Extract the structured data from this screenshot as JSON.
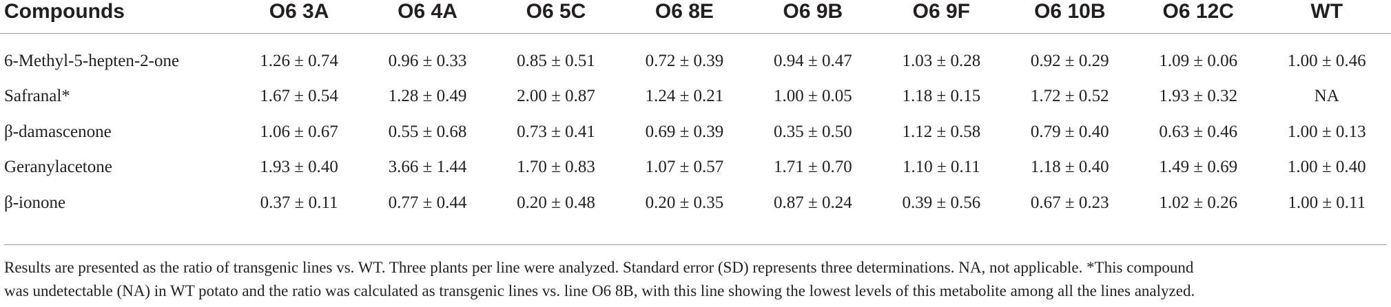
{
  "table": {
    "headers": [
      "Compounds",
      "O6 3A",
      "O6 4A",
      "O6 5C",
      "O6 8E",
      "O6 9B",
      "O6 9F",
      "O6 10B",
      "O6 12C",
      "WT"
    ],
    "rows": [
      {
        "compound": "6-Methyl-5-hepten-2-one",
        "values": [
          "1.26 ± 0.74",
          "0.96 ± 0.33",
          "0.85 ± 0.51",
          "0.72 ± 0.39",
          "0.94 ± 0.47",
          "1.03 ± 0.28",
          "0.92 ± 0.29",
          "1.09 ± 0.06",
          "1.00 ± 0.46"
        ]
      },
      {
        "compound": "Safranal*",
        "values": [
          "1.67 ± 0.54",
          "1.28 ± 0.49",
          "2.00 ± 0.87",
          "1.24 ± 0.21",
          "1.00 ± 0.05",
          "1.18 ± 0.15",
          "1.72 ± 0.52",
          "1.93 ± 0.32",
          "NA"
        ]
      },
      {
        "compound": "β-damascenone",
        "values": [
          "1.06 ± 0.67",
          "0.55 ± 0.68",
          "0.73 ± 0.41",
          "0.69 ± 0.39",
          "0.35 ± 0.50",
          "1.12 ± 0.58",
          "0.79 ± 0.40",
          "0.63 ± 0.46",
          "1.00 ± 0.13"
        ]
      },
      {
        "compound": "Geranylacetone",
        "values": [
          "1.93 ± 0.40",
          "3.66 ± 1.44",
          "1.70 ± 0.83",
          "1.07 ± 0.57",
          "1.71 ± 0.70",
          "1.10 ± 0.11",
          "1.18 ± 0.40",
          "1.49 ± 0.69",
          "1.00 ± 0.40"
        ]
      },
      {
        "compound": "β-ionone",
        "values": [
          "0.37 ± 0.11",
          "0.77 ± 0.44",
          "0.20 ± 0.48",
          "0.20 ± 0.35",
          "0.87 ± 0.24",
          "0.39 ± 0.56",
          "0.67 ± 0.23",
          "1.02 ± 0.26",
          "1.00 ± 0.11"
        ]
      }
    ]
  },
  "footnote": {
    "line1": "Results are presented as the ratio of transgenic lines vs. WT. Three plants per line were analyzed. Standard error (SD) represents three determinations. NA, not applicable. *This compound",
    "line2": "was undetectable (NA) in WT potato and the ratio was calculated as transgenic lines vs. line O6 8B, with this line showing the lowest levels of this metabolite among all the lines analyzed."
  }
}
